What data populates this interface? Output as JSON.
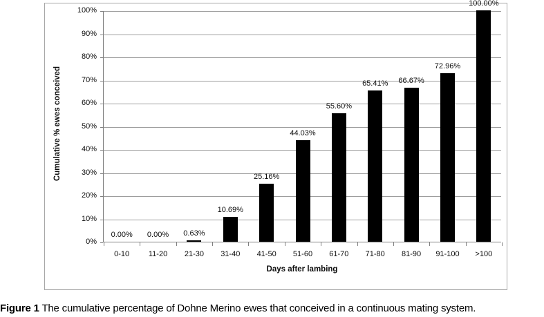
{
  "chart_data": {
    "type": "bar",
    "title": "",
    "categories": [
      "0-10",
      "11-20",
      "21-30",
      "31-40",
      "41-50",
      "51-60",
      "61-70",
      "71-80",
      "81-90",
      "91-100",
      ">100"
    ],
    "values": [
      0.0,
      0.0,
      0.63,
      10.69,
      25.16,
      44.03,
      55.6,
      65.41,
      66.67,
      72.96,
      100.0
    ],
    "data_labels": [
      "0.00%",
      "0.00%",
      "0.63%",
      "10.69%",
      "25.16%",
      "44.03%",
      "55.60%",
      "65.41%",
      "66.67%",
      "72.96%",
      "100.00%"
    ],
    "xlabel": "Days after lambing",
    "ylabel": "Cumulative % ewes conceived",
    "ylim": [
      0,
      100
    ],
    "ytick_step": 10,
    "ytick_labels": [
      "0%",
      "10%",
      "20%",
      "30%",
      "40%",
      "50%",
      "60%",
      "70%",
      "80%",
      "90%",
      "100%"
    ],
    "grid": true,
    "legend": false,
    "bar_color": "#000000",
    "gridline_color": "#9d9d9d",
    "axis_color": "#7f7f7f"
  },
  "caption": {
    "label": "Figure 1",
    "text": " The cumulative percentage of Dohne Merino ewes that conceived in a continuous mating system."
  }
}
